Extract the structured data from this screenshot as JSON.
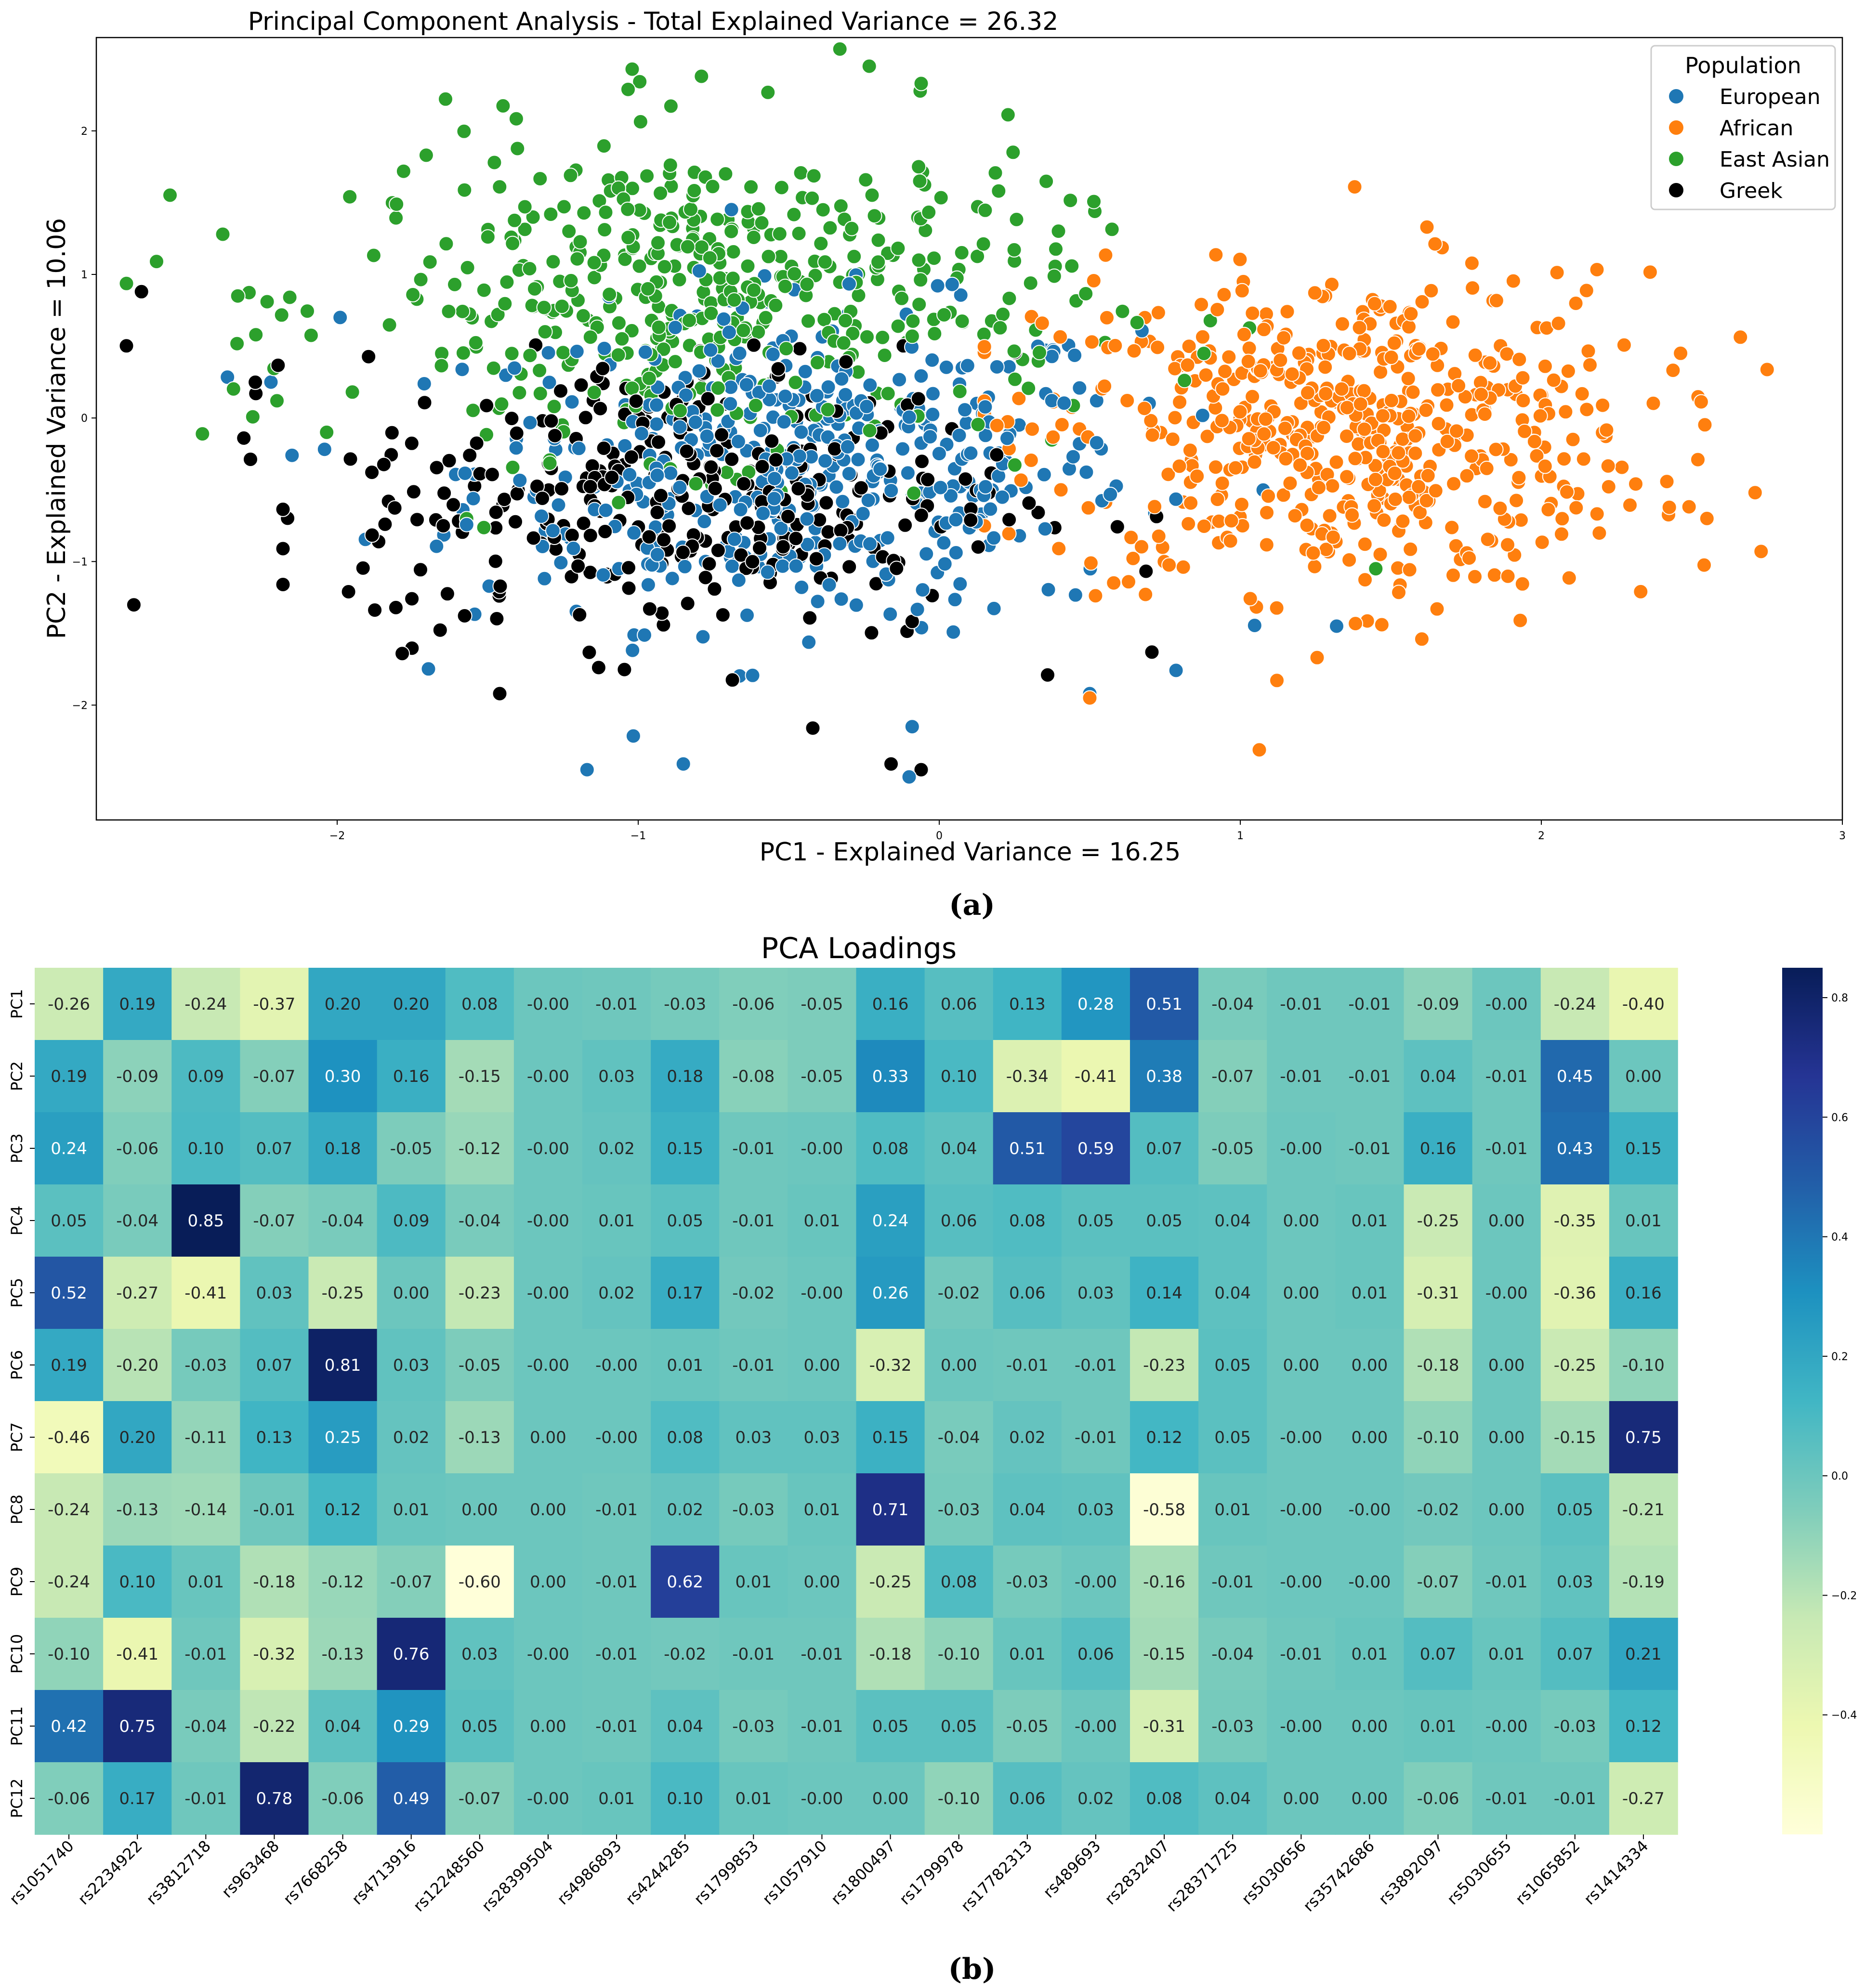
{
  "chart_data": [
    {
      "type": "scatter",
      "title": "Principal Component Analysis - Total Explained Variance = 26.32",
      "xlabel": "PC1 - Explained Variance = 16.25",
      "ylabel": "PC2 - Explained Variance = 10.06",
      "xlim": [
        -2.8,
        3.0
      ],
      "ylim": [
        -2.8,
        2.65
      ],
      "x_ticks": [
        "-2",
        "-1",
        "0",
        "1",
        "2",
        "3"
      ],
      "y_ticks": [
        "-2",
        "-1",
        "0",
        "1",
        "2"
      ],
      "legend": {
        "title": "Population",
        "placement": "top-right"
      },
      "series": [
        {
          "name": "European",
          "color": "#1f77b4",
          "n": 460,
          "mean": [
            -0.45,
            -0.35
          ],
          "sd": [
            0.55,
            0.55
          ],
          "points": [
            [
              -1.17,
              -2.45
            ],
            [
              -0.85,
              -2.41
            ],
            [
              -0.1,
              -2.5
            ],
            [
              -0.09,
              -2.15
            ],
            [
              -1.99,
              0.7
            ],
            [
              -2.15,
              -0.26
            ],
            [
              -2.22,
              0.25
            ],
            [
              0.5,
              -1.92
            ],
            [
              1.32,
              -1.45
            ],
            [
              -0.58,
              0.99
            ]
          ]
        },
        {
          "name": "African",
          "color": "#ff7f0e",
          "n": 560,
          "mean": [
            1.35,
            -0.1
          ],
          "sd": [
            0.5,
            0.55
          ],
          "points": [
            [
              2.71,
              -0.52
            ],
            [
              2.73,
              -0.93
            ],
            [
              2.52,
              -0.29
            ],
            [
              2.33,
              -1.21
            ],
            [
              1.62,
              1.33
            ],
            [
              1.38,
              1.61
            ],
            [
              0.5,
              -1.95
            ],
            [
              1.47,
              -1.44
            ],
            [
              1.93,
              -1.41
            ],
            [
              2.55,
              -0.7
            ]
          ]
        },
        {
          "name": "East Asian",
          "color": "#2ca02c",
          "n": 480,
          "mean": [
            -0.75,
            0.85
          ],
          "sd": [
            0.6,
            0.55
          ],
          "points": [
            [
              -2.6,
              1.09
            ],
            [
              -2.38,
              1.28
            ],
            [
              -2.33,
              0.85
            ],
            [
              -0.33,
              2.57
            ],
            [
              -1.02,
              2.43
            ],
            [
              -0.79,
              2.38
            ],
            [
              -0.06,
              2.33
            ],
            [
              -2.27,
              0.58
            ],
            [
              1.45,
              -1.05
            ],
            [
              -2.2,
              0.12
            ]
          ]
        },
        {
          "name": "Greek",
          "color": "#000000",
          "n": 340,
          "mean": [
            -0.85,
            -0.55
          ],
          "sd": [
            0.55,
            0.5
          ],
          "points": [
            [
              -2.65,
              0.88
            ],
            [
              -2.31,
              -0.14
            ],
            [
              -2.18,
              -1.16
            ],
            [
              -2.18,
              -0.91
            ],
            [
              -0.06,
              -2.45
            ],
            [
              -0.16,
              -2.41
            ],
            [
              -1.46,
              -1.92
            ],
            [
              0.36,
              -1.79
            ],
            [
              -0.42,
              -2.16
            ],
            [
              -2.27,
              0.17
            ]
          ]
        }
      ]
    },
    {
      "type": "heatmap",
      "title": "PCA Loadings",
      "rows": [
        "PC1",
        "PC2",
        "PC3",
        "PC4",
        "PC5",
        "PC6",
        "PC7",
        "PC8",
        "PC9",
        "PC10",
        "PC11",
        "PC12"
      ],
      "columns": [
        "rs1051740",
        "rs2234922",
        "rs3812718",
        "rs963468",
        "rs7668258",
        "rs4713916",
        "rs12248560",
        "rs28399504",
        "rs4986893",
        "rs4244285",
        "rs1799853",
        "rs1057910",
        "rs1800497",
        "rs1799978",
        "rs17782313",
        "rs489693",
        "rs2832407",
        "rs28371725",
        "rs5030656",
        "rs35742686",
        "rs3892097",
        "rs5030655",
        "rs1065852",
        "rs1414334"
      ],
      "cells": [
        [
          "-0.26",
          "0.19",
          "-0.24",
          "-0.37",
          "0.20",
          "0.20",
          "0.08",
          "-0.00",
          "-0.01",
          "-0.03",
          "-0.06",
          "-0.05",
          "0.16",
          "0.06",
          "0.13",
          "0.28",
          "0.51",
          "-0.04",
          "-0.01",
          "-0.01",
          "-0.09",
          "-0.00",
          "-0.24",
          "-0.40"
        ],
        [
          "0.19",
          "-0.09",
          "0.09",
          "-0.07",
          "0.30",
          "0.16",
          "-0.15",
          "-0.00",
          "0.03",
          "0.18",
          "-0.08",
          "-0.05",
          "0.33",
          "0.10",
          "-0.34",
          "-0.41",
          "0.38",
          "-0.07",
          "-0.01",
          "-0.01",
          "0.04",
          "-0.01",
          "0.45",
          "0.00"
        ],
        [
          "0.24",
          "-0.06",
          "0.10",
          "0.07",
          "0.18",
          "-0.05",
          "-0.12",
          "-0.00",
          "0.02",
          "0.15",
          "-0.01",
          "-0.00",
          "0.08",
          "0.04",
          "0.51",
          "0.59",
          "0.07",
          "-0.05",
          "-0.00",
          "-0.01",
          "0.16",
          "-0.01",
          "0.43",
          "0.15"
        ],
        [
          "0.05",
          "-0.04",
          "0.85",
          "-0.07",
          "-0.04",
          "0.09",
          "-0.04",
          "-0.00",
          "0.01",
          "0.05",
          "-0.01",
          "0.01",
          "0.24",
          "0.06",
          "0.08",
          "0.05",
          "0.05",
          "0.04",
          "0.00",
          "0.01",
          "-0.25",
          "0.00",
          "-0.35",
          "0.01"
        ],
        [
          "0.52",
          "-0.27",
          "-0.41",
          "0.03",
          "-0.25",
          "0.00",
          "-0.23",
          "-0.00",
          "0.02",
          "0.17",
          "-0.02",
          "-0.00",
          "0.26",
          "-0.02",
          "0.06",
          "0.03",
          "0.14",
          "0.04",
          "0.00",
          "0.01",
          "-0.31",
          "-0.00",
          "-0.36",
          "0.16"
        ],
        [
          "0.19",
          "-0.20",
          "-0.03",
          "0.07",
          "0.81",
          "0.03",
          "-0.05",
          "-0.00",
          "-0.00",
          "0.01",
          "-0.01",
          "0.00",
          "-0.32",
          "0.00",
          "-0.01",
          "-0.01",
          "-0.23",
          "0.05",
          "0.00",
          "0.00",
          "-0.18",
          "0.00",
          "-0.25",
          "-0.10"
        ],
        [
          "-0.46",
          "0.20",
          "-0.11",
          "0.13",
          "0.25",
          "0.02",
          "-0.13",
          "0.00",
          "-0.00",
          "0.08",
          "0.03",
          "0.03",
          "0.15",
          "-0.04",
          "0.02",
          "-0.01",
          "0.12",
          "0.05",
          "-0.00",
          "0.00",
          "-0.10",
          "0.00",
          "-0.15",
          "0.75"
        ],
        [
          "-0.24",
          "-0.13",
          "-0.14",
          "-0.01",
          "0.12",
          "0.01",
          "0.00",
          "0.00",
          "-0.01",
          "0.02",
          "-0.03",
          "0.01",
          "0.71",
          "-0.03",
          "0.04",
          "0.03",
          "-0.58",
          "0.01",
          "-0.00",
          "-0.00",
          "-0.02",
          "0.00",
          "0.05",
          "-0.21"
        ],
        [
          "-0.24",
          "0.10",
          "0.01",
          "-0.18",
          "-0.12",
          "-0.07",
          "-0.60",
          "0.00",
          "-0.01",
          "0.62",
          "0.01",
          "0.00",
          "-0.25",
          "0.08",
          "-0.03",
          "-0.00",
          "-0.16",
          "-0.01",
          "-0.00",
          "-0.00",
          "-0.07",
          "-0.01",
          "0.03",
          "-0.19"
        ],
        [
          "-0.10",
          "-0.41",
          "-0.01",
          "-0.32",
          "-0.13",
          "0.76",
          "0.03",
          "-0.00",
          "-0.01",
          "-0.02",
          "-0.01",
          "-0.01",
          "-0.18",
          "-0.10",
          "0.01",
          "0.06",
          "-0.15",
          "-0.04",
          "-0.01",
          "0.01",
          "0.07",
          "0.01",
          "0.07",
          "0.21"
        ],
        [
          "0.42",
          "0.75",
          "-0.04",
          "-0.22",
          "0.04",
          "0.29",
          "0.05",
          "0.00",
          "-0.01",
          "0.04",
          "-0.03",
          "-0.01",
          "0.05",
          "0.05",
          "-0.05",
          "-0.00",
          "-0.31",
          "-0.03",
          "-0.00",
          "0.00",
          "0.01",
          "-0.00",
          "-0.03",
          "0.12"
        ],
        [
          "-0.06",
          "0.17",
          "-0.01",
          "0.78",
          "-0.06",
          "0.49",
          "-0.07",
          "-0.00",
          "0.01",
          "0.10",
          "0.01",
          "-0.00",
          "0.00",
          "-0.10",
          "0.06",
          "0.02",
          "0.08",
          "0.04",
          "0.00",
          "0.00",
          "-0.06",
          "-0.01",
          "-0.01",
          "-0.27"
        ]
      ],
      "vmin": -0.6,
      "vmax": 0.85,
      "colormap": "YlGnBu",
      "colorbar_ticks": [
        "0.8",
        "0.6",
        "0.4",
        "0.2",
        "0.0",
        "−0.2",
        "−0.4"
      ]
    }
  ],
  "captions": {
    "a": "(a)",
    "b": "(b)"
  }
}
